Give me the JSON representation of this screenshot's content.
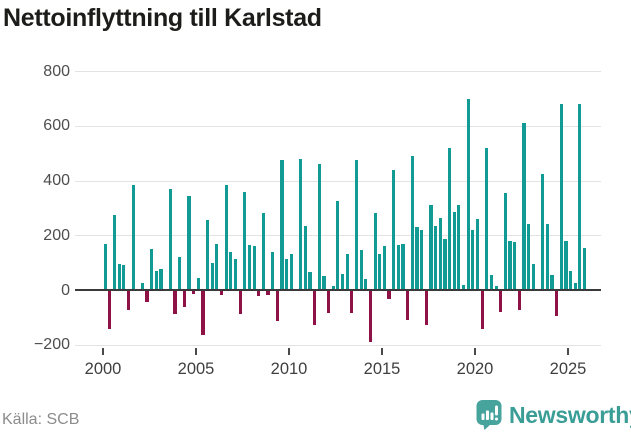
{
  "title": "Nettoinflyttning till Karlstad",
  "source": {
    "label": "Källa: SCB"
  },
  "branding": {
    "name": "Newsworthy",
    "icon": "newsworthy-bubble-chart-icon",
    "color": "#3a9d96"
  },
  "colors": {
    "positive_bar": "#129b94",
    "negative_bar": "#8e1245",
    "zero_line": "#3a3a3a",
    "gridline": "#e3e3e3"
  },
  "chart_data": {
    "type": "bar",
    "title": "Nettoinflyttning till Karlstad",
    "xlabel": "",
    "ylabel": "",
    "ylim": [
      -200,
      800
    ],
    "grid": "horizontal",
    "y_ticks": [
      {
        "value": 800,
        "label": "800"
      },
      {
        "value": 600,
        "label": "600"
      },
      {
        "value": 400,
        "label": "400"
      },
      {
        "value": 200,
        "label": "200"
      },
      {
        "value": 0,
        "label": "0"
      },
      {
        "value": -200,
        "label": "−200"
      }
    ],
    "x_tick_labels": [
      "2000",
      "2005",
      "2010",
      "2015",
      "2020",
      "2025"
    ],
    "categories": [
      "2000Q1",
      "2000Q2",
      "2000Q3",
      "2000Q4",
      "2001Q1",
      "2001Q2",
      "2001Q3",
      "2001Q4",
      "2002Q1",
      "2002Q2",
      "2002Q3",
      "2002Q4",
      "2003Q1",
      "2003Q2",
      "2003Q3",
      "2003Q4",
      "2004Q1",
      "2004Q2",
      "2004Q3",
      "2004Q4",
      "2005Q1",
      "2005Q2",
      "2005Q3",
      "2005Q4",
      "2006Q1",
      "2006Q2",
      "2006Q3",
      "2006Q4",
      "2007Q1",
      "2007Q2",
      "2007Q3",
      "2007Q4",
      "2008Q1",
      "2008Q2",
      "2008Q3",
      "2008Q4",
      "2009Q1",
      "2009Q2",
      "2009Q3",
      "2009Q4",
      "2010Q1",
      "2010Q2",
      "2010Q3",
      "2010Q4",
      "2011Q1",
      "2011Q2",
      "2011Q3",
      "2011Q4",
      "2012Q1",
      "2012Q2",
      "2012Q3",
      "2012Q4",
      "2013Q1",
      "2013Q2",
      "2013Q3",
      "2013Q4",
      "2014Q1",
      "2014Q2",
      "2014Q3",
      "2014Q4",
      "2015Q1",
      "2015Q2",
      "2015Q3",
      "2015Q4",
      "2016Q1",
      "2016Q2",
      "2016Q3",
      "2016Q4",
      "2017Q1",
      "2017Q2",
      "2017Q3",
      "2017Q4",
      "2018Q1",
      "2018Q2",
      "2018Q3",
      "2018Q4",
      "2019Q1",
      "2019Q2",
      "2019Q3",
      "2019Q4",
      "2020Q1",
      "2020Q2",
      "2020Q3",
      "2020Q4",
      "2021Q1",
      "2021Q2",
      "2021Q3",
      "2021Q4",
      "2022Q1",
      "2022Q2",
      "2022Q3",
      "2022Q4",
      "2023Q1",
      "2023Q2",
      "2023Q3",
      "2023Q4",
      "2024Q1",
      "2024Q2",
      "2024Q3",
      "2024Q4",
      "2025Q1",
      "2025Q2",
      "2025Q3",
      "2025Q4"
    ],
    "values": [
      170,
      -140,
      275,
      95,
      90,
      -70,
      385,
      0,
      25,
      -40,
      150,
      70,
      75,
      0,
      370,
      -85,
      120,
      -60,
      345,
      -10,
      45,
      -160,
      255,
      100,
      170,
      -15,
      385,
      140,
      115,
      -85,
      360,
      165,
      160,
      -20,
      280,
      -15,
      140,
      -110,
      475,
      115,
      130,
      0,
      480,
      235,
      65,
      -125,
      460,
      50,
      -80,
      15,
      325,
      60,
      130,
      -80,
      475,
      145,
      40,
      -185,
      280,
      130,
      160,
      -30,
      440,
      165,
      170,
      -105,
      490,
      230,
      220,
      -125,
      310,
      235,
      265,
      185,
      520,
      285,
      310,
      20,
      700,
      220,
      260,
      -140,
      520,
      55,
      15,
      -75,
      355,
      180,
      175,
      -70,
      610,
      240,
      95,
      0,
      425,
      240,
      55,
      -90,
      680,
      180,
      70,
      25,
      680,
      155
    ]
  }
}
